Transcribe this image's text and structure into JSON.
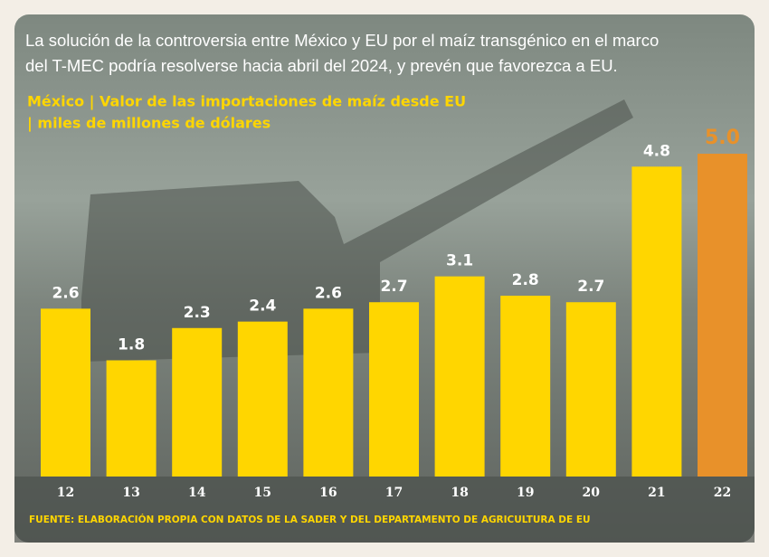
{
  "chart_data": {
    "type": "bar",
    "title": [
      "La solución de la controversia entre México y EU por el maíz transgénico en el marco",
      "del T-MEC podría resolverse hacia abril del 2024, y prevén que favorezca a EU."
    ],
    "subtitle": [
      "México | Valor de las importaciones de maíz desde EU",
      "| miles de millones de dólares"
    ],
    "categories": [
      "12",
      "13",
      "14",
      "15",
      "16",
      "17",
      "18",
      "19",
      "20",
      "21",
      "22"
    ],
    "values": [
      2.6,
      1.8,
      2.3,
      2.4,
      2.6,
      2.7,
      3.1,
      2.8,
      2.7,
      4.8,
      5.0
    ],
    "value_labels": [
      "2.6",
      "1.8",
      "2.3",
      "2.4",
      "2.6",
      "2.7",
      "3.1",
      "2.8",
      "2.7",
      "4.8",
      "5.0"
    ],
    "colors": [
      "#FFD600",
      "#FFD600",
      "#FFD600",
      "#FFD600",
      "#FFD600",
      "#FFD600",
      "#FFD600",
      "#FFD600",
      "#FFD600",
      "#FFD600",
      "#E8912A"
    ],
    "source": "FUENTE: ELABORACIÓN PROPIA CON DATOS DE LA SADER Y DEL DEPARTAMENTO DE AGRICULTURA DE EU"
  }
}
